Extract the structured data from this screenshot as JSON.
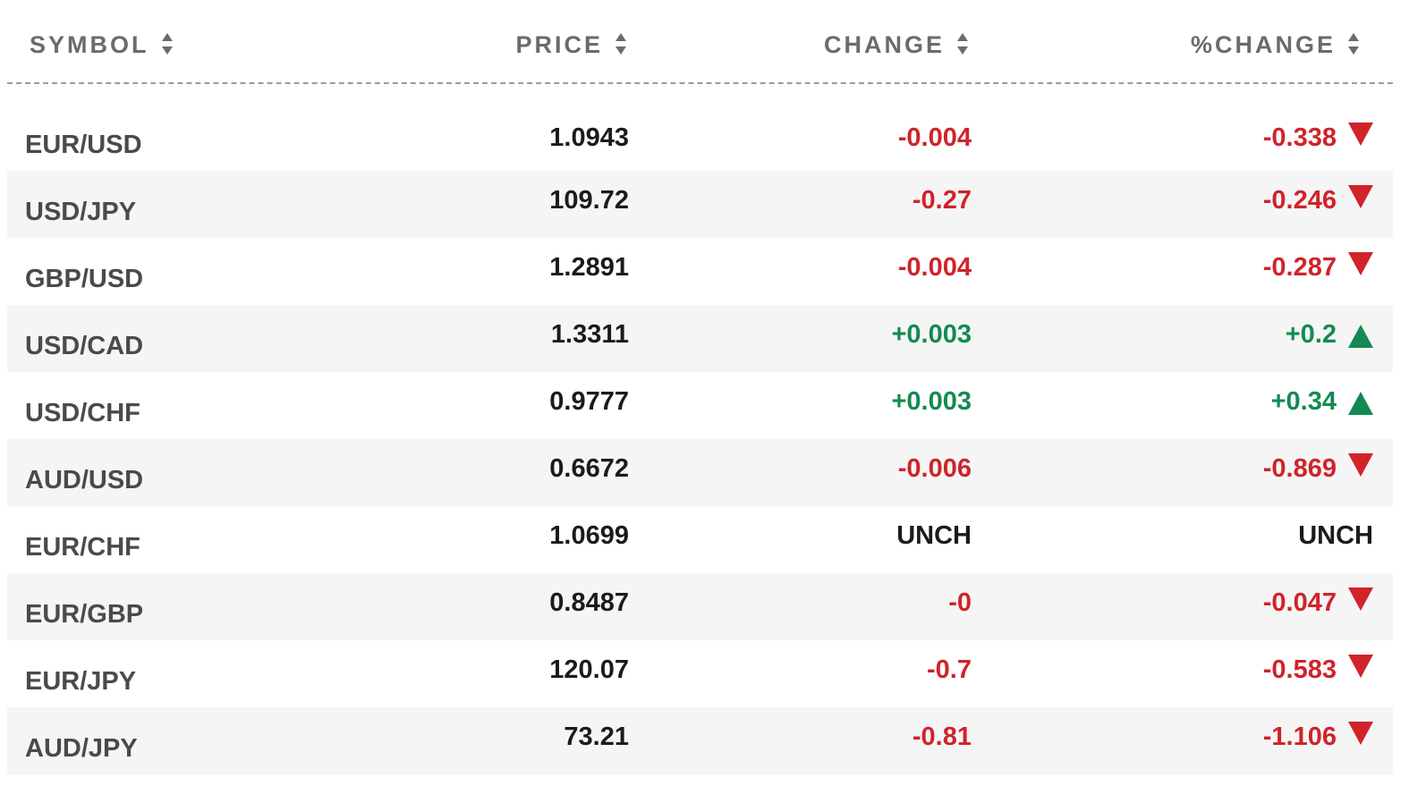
{
  "columns": {
    "symbol": "SYMBOL",
    "price": "PRICE",
    "change": "CHANGE",
    "pct_change": "%CHANGE"
  },
  "colors": {
    "negative": "#d0232a",
    "positive": "#138a52",
    "neutral": "#1b1b1b"
  },
  "rows": [
    {
      "symbol": "EUR/USD",
      "price": "1.0943",
      "change": "-0.004",
      "pct_change": "-0.338",
      "direction": "down"
    },
    {
      "symbol": "USD/JPY",
      "price": "109.72",
      "change": "-0.27",
      "pct_change": "-0.246",
      "direction": "down"
    },
    {
      "symbol": "GBP/USD",
      "price": "1.2891",
      "change": "-0.004",
      "pct_change": "-0.287",
      "direction": "down"
    },
    {
      "symbol": "USD/CAD",
      "price": "1.3311",
      "change": "+0.003",
      "pct_change": "+0.2",
      "direction": "up"
    },
    {
      "symbol": "USD/CHF",
      "price": "0.9777",
      "change": "+0.003",
      "pct_change": "+0.34",
      "direction": "up"
    },
    {
      "symbol": "AUD/USD",
      "price": "0.6672",
      "change": "-0.006",
      "pct_change": "-0.869",
      "direction": "down"
    },
    {
      "symbol": "EUR/CHF",
      "price": "1.0699",
      "change": "UNCH",
      "pct_change": "UNCH",
      "direction": "none"
    },
    {
      "symbol": "EUR/GBP",
      "price": "0.8487",
      "change": "-0",
      "pct_change": "-0.047",
      "direction": "down"
    },
    {
      "symbol": "EUR/JPY",
      "price": "120.07",
      "change": "-0.7",
      "pct_change": "-0.583",
      "direction": "down"
    },
    {
      "symbol": "AUD/JPY",
      "price": "73.21",
      "change": "-0.81",
      "pct_change": "-1.106",
      "direction": "down"
    }
  ]
}
